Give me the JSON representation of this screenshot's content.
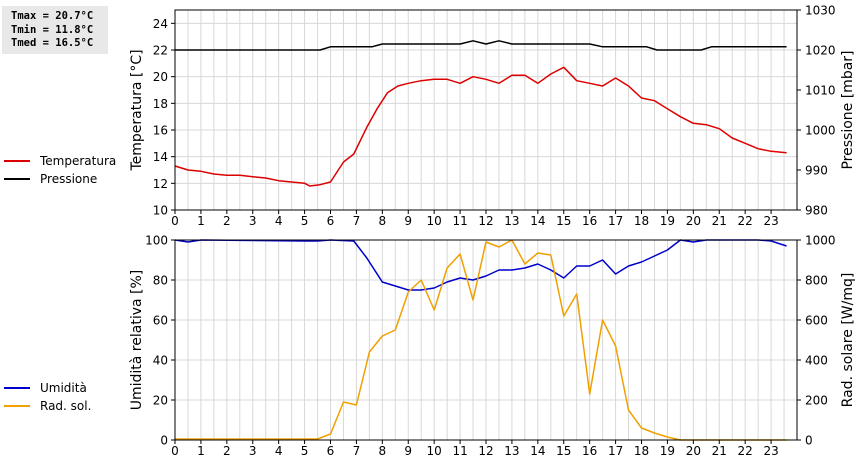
{
  "stats": {
    "tmax": "Tmax = 20.7°C",
    "tmin": "Tmin = 11.8°C",
    "tmed": "Tmed = 16.5°C"
  },
  "legend_top": {
    "temperature": "Temperatura",
    "pressure": "Pressione"
  },
  "legend_bottom": {
    "humidity": "Umidità",
    "solar": "Rad. sol."
  },
  "chart_data": [
    {
      "type": "line",
      "x_ticks": [
        "0",
        "1",
        "2",
        "3",
        "4",
        "5",
        "6",
        "7",
        "8",
        "9",
        "10",
        "11",
        "12",
        "13",
        "14",
        "15",
        "16",
        "17",
        "18",
        "19",
        "20",
        "21",
        "22",
        "23"
      ],
      "xlim": [
        0,
        24
      ],
      "ylabel_left": "Temperatura [°C]",
      "ylabel_right": "Pressione [mbar]",
      "ylim_left": [
        10,
        25
      ],
      "yticks_left": [
        10,
        12,
        14,
        16,
        18,
        20,
        22,
        24
      ],
      "ylim_right": [
        980,
        1030
      ],
      "yticks_right": [
        980,
        990,
        1000,
        1010,
        1020,
        1030
      ],
      "grid": true,
      "series": [
        {
          "name": "Temperatura",
          "axis": "left",
          "color": "#dd0000",
          "points": [
            [
              0,
              13.3
            ],
            [
              0.5,
              13.0
            ],
            [
              1,
              12.9
            ],
            [
              1.5,
              12.7
            ],
            [
              2,
              12.6
            ],
            [
              2.5,
              12.6
            ],
            [
              3,
              12.5
            ],
            [
              3.5,
              12.4
            ],
            [
              4,
              12.2
            ],
            [
              4.5,
              12.1
            ],
            [
              5,
              12.0
            ],
            [
              5.2,
              11.8
            ],
            [
              5.6,
              11.9
            ],
            [
              6,
              12.1
            ],
            [
              6.5,
              13.6
            ],
            [
              6.9,
              14.2
            ],
            [
              7.4,
              16.2
            ],
            [
              7.8,
              17.6
            ],
            [
              8.2,
              18.8
            ],
            [
              8.6,
              19.3
            ],
            [
              9,
              19.5
            ],
            [
              9.5,
              19.7
            ],
            [
              10,
              19.8
            ],
            [
              10.5,
              19.8
            ],
            [
              11,
              19.5
            ],
            [
              11.5,
              20.0
            ],
            [
              12,
              19.8
            ],
            [
              12.5,
              19.5
            ],
            [
              13,
              20.1
            ],
            [
              13.5,
              20.1
            ],
            [
              14,
              19.5
            ],
            [
              14.5,
              20.2
            ],
            [
              15,
              20.7
            ],
            [
              15.5,
              19.7
            ],
            [
              16,
              19.5
            ],
            [
              16.5,
              19.3
            ],
            [
              17,
              19.9
            ],
            [
              17.5,
              19.3
            ],
            [
              18,
              18.4
            ],
            [
              18.5,
              18.2
            ],
            [
              19,
              17.6
            ],
            [
              19.5,
              17.0
            ],
            [
              20,
              16.5
            ],
            [
              20.5,
              16.4
            ],
            [
              21,
              16.1
            ],
            [
              21.5,
              15.4
            ],
            [
              22,
              15.0
            ],
            [
              22.5,
              14.6
            ],
            [
              23,
              14.4
            ],
            [
              23.6,
              14.3
            ]
          ]
        },
        {
          "name": "Pressione",
          "axis": "right",
          "color": "#000000",
          "points": [
            [
              0,
              1020
            ],
            [
              5.6,
              1020
            ],
            [
              6,
              1020.8
            ],
            [
              7.6,
              1020.8
            ],
            [
              8,
              1021.5
            ],
            [
              11,
              1021.5
            ],
            [
              11.5,
              1022.3
            ],
            [
              12,
              1021.5
            ],
            [
              12.5,
              1022.3
            ],
            [
              13,
              1021.5
            ],
            [
              16,
              1021.5
            ],
            [
              16.5,
              1020.8
            ],
            [
              18.2,
              1020.8
            ],
            [
              18.6,
              1020
            ],
            [
              20.3,
              1020
            ],
            [
              20.7,
              1020.8
            ],
            [
              23.6,
              1020.8
            ]
          ]
        }
      ]
    },
    {
      "type": "line",
      "x_ticks": [
        "0",
        "1",
        "2",
        "3",
        "4",
        "5",
        "6",
        "7",
        "8",
        "9",
        "10",
        "11",
        "12",
        "13",
        "14",
        "15",
        "16",
        "17",
        "18",
        "19",
        "20",
        "21",
        "22",
        "23"
      ],
      "xlim": [
        0,
        24
      ],
      "ylabel_left": "Umidità relativa [%]",
      "ylabel_right": "Rad. solare [W/mq]",
      "ylim_left": [
        0,
        100
      ],
      "yticks_left": [
        0,
        20,
        40,
        60,
        80,
        100
      ],
      "ylim_right": [
        0,
        1000
      ],
      "yticks_right": [
        0,
        200,
        400,
        600,
        800,
        1000
      ],
      "grid": true,
      "series": [
        {
          "name": "Umidità",
          "axis": "left",
          "color": "#0000cc",
          "points": [
            [
              0,
              100
            ],
            [
              0.5,
              99
            ],
            [
              1,
              100
            ],
            [
              5,
              99.5
            ],
            [
              5.5,
              99.5
            ],
            [
              6,
              100
            ],
            [
              6.9,
              99.5
            ],
            [
              7.4,
              91
            ],
            [
              8,
              79
            ],
            [
              8.5,
              77
            ],
            [
              9,
              75
            ],
            [
              9.5,
              75
            ],
            [
              10,
              76
            ],
            [
              10.5,
              79
            ],
            [
              11,
              81
            ],
            [
              11.5,
              80
            ],
            [
              12,
              82
            ],
            [
              12.5,
              85
            ],
            [
              13,
              85
            ],
            [
              13.5,
              86
            ],
            [
              14,
              88
            ],
            [
              14.5,
              85
            ],
            [
              15,
              81
            ],
            [
              15.5,
              87
            ],
            [
              16,
              87
            ],
            [
              16.5,
              90
            ],
            [
              17,
              83
            ],
            [
              17.5,
              87
            ],
            [
              18,
              89
            ],
            [
              18.5,
              92
            ],
            [
              19,
              95
            ],
            [
              19.5,
              100
            ],
            [
              20,
              99
            ],
            [
              20.5,
              100
            ],
            [
              22.5,
              100
            ],
            [
              23,
              99.5
            ],
            [
              23.6,
              97
            ]
          ]
        },
        {
          "name": "Rad. sol.",
          "axis": "right",
          "color": "#f0a000",
          "points": [
            [
              0,
              5
            ],
            [
              5.5,
              5
            ],
            [
              6,
              30
            ],
            [
              6.5,
              190
            ],
            [
              7,
              175
            ],
            [
              7.5,
              440
            ],
            [
              8,
              520
            ],
            [
              8.5,
              550
            ],
            [
              9,
              740
            ],
            [
              9.5,
              800
            ],
            [
              10,
              650
            ],
            [
              10.5,
              860
            ],
            [
              11,
              930
            ],
            [
              11.5,
              700
            ],
            [
              12,
              990
            ],
            [
              12.5,
              965
            ],
            [
              13,
              1000
            ],
            [
              13.5,
              880
            ],
            [
              14,
              935
            ],
            [
              14.5,
              925
            ],
            [
              15,
              620
            ],
            [
              15.5,
              730
            ],
            [
              16,
              230
            ],
            [
              16.5,
              600
            ],
            [
              17,
              470
            ],
            [
              17.5,
              150
            ],
            [
              18,
              60
            ],
            [
              18.5,
              35
            ],
            [
              19,
              15
            ],
            [
              19.5,
              0
            ],
            [
              23.6,
              0
            ]
          ]
        }
      ]
    }
  ]
}
